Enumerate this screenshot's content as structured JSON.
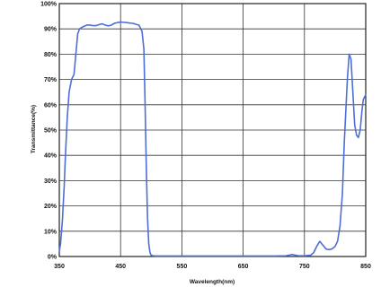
{
  "chart_data": {
    "type": "line",
    "title": "",
    "xlabel": "Wavelength(nm)",
    "ylabel": "Transmittance(%)",
    "xlim": [
      350,
      850
    ],
    "ylim": [
      0,
      100
    ],
    "x_ticks": [
      350,
      450,
      550,
      650,
      750,
      850
    ],
    "x_tick_labels": [
      "350",
      "450",
      "550",
      "650",
      "750",
      "850"
    ],
    "y_ticks": [
      0,
      10,
      20,
      30,
      40,
      50,
      60,
      70,
      80,
      90,
      100
    ],
    "y_tick_labels": [
      "0%",
      "10%",
      "20%",
      "30%",
      "40%",
      "50%",
      "60%",
      "70%",
      "80%",
      "90%",
      "100%"
    ],
    "grid": true,
    "line_color": "#4d6fd6",
    "series": [
      {
        "x": [
          350,
          352,
          355,
          358,
          360,
          363,
          366,
          370,
          374,
          377,
          380,
          383,
          386,
          390,
          395,
          400,
          405,
          410,
          415,
          420,
          425,
          430,
          435,
          440,
          445,
          450,
          455,
          460,
          465,
          470,
          475,
          480,
          485,
          488,
          490,
          492,
          494,
          496,
          498,
          500,
          503,
          507,
          512,
          520,
          540,
          560,
          600,
          640,
          680,
          700,
          720,
          730,
          740,
          750,
          760,
          765,
          770,
          775,
          780,
          785,
          790,
          795,
          800,
          804,
          808,
          812,
          815,
          818,
          820,
          823,
          826,
          829,
          832,
          835,
          838,
          841,
          844,
          846,
          848,
          850
        ],
        "y": [
          2,
          5,
          14,
          28,
          40,
          55,
          65,
          70,
          72,
          80,
          88,
          90,
          90.5,
          91,
          91.5,
          91.5,
          91.3,
          91.3,
          91.7,
          92,
          91.5,
          91.2,
          91.5,
          92.2,
          92.5,
          92.7,
          92.6,
          92.5,
          92.3,
          92.2,
          91.8,
          91.5,
          89,
          82,
          60,
          35,
          15,
          5,
          1.5,
          0.5,
          0.3,
          0.2,
          0.2,
          0.2,
          0.2,
          0.2,
          0.2,
          0.2,
          0.2,
          0.2,
          0.3,
          0.8,
          0.3,
          0.3,
          0.5,
          1.5,
          4,
          6,
          4.5,
          3,
          2.7,
          3,
          4,
          6,
          12,
          25,
          45,
          60,
          70,
          80,
          78,
          65,
          52,
          48,
          47,
          50,
          58,
          62,
          63,
          64
        ]
      }
    ]
  }
}
